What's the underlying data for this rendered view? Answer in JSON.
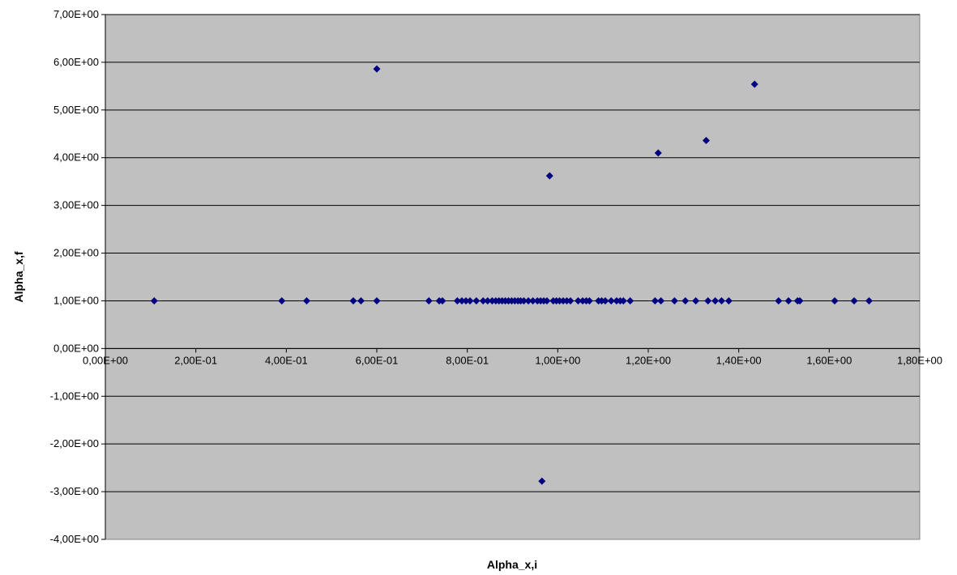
{
  "chart_data": {
    "type": "scatter",
    "xlabel": "Alpha_x,i",
    "ylabel": "Alpha_x,f",
    "xlim": [
      0,
      1.8
    ],
    "ylim": [
      -4,
      7
    ],
    "grid": "horizontal",
    "marker": "diamond",
    "colors": {
      "plot_background": "#C0C0C0",
      "marker": "#000080",
      "grid": "#000000"
    },
    "x_tick_labels": [
      "0,00E+00",
      "2,00E-01",
      "4,00E-01",
      "6,00E-01",
      "8,00E-01",
      "1,00E+00",
      "1,20E+00",
      "1,40E+00",
      "1,60E+00",
      "1,80E+00"
    ],
    "y_tick_labels": [
      "-4,00E+00",
      "-3,00E+00",
      "-2,00E+00",
      "-1,00E+00",
      "0,00E+00",
      "1,00E+00",
      "2,00E+00",
      "3,00E+00",
      "4,00E+00",
      "5,00E+00",
      "6,00E+00",
      "7,00E+00"
    ],
    "x_tick_values": [
      0,
      0.2,
      0.4,
      0.6,
      0.8,
      1.0,
      1.2,
      1.4,
      1.6,
      1.8
    ],
    "y_tick_values": [
      -4,
      -3,
      -2,
      -1,
      0,
      1,
      2,
      3,
      4,
      5,
      6,
      7
    ],
    "points": [
      {
        "x": 0.108,
        "y": 1
      },
      {
        "x": 0.39,
        "y": 1
      },
      {
        "x": 0.445,
        "y": 1
      },
      {
        "x": 0.548,
        "y": 1
      },
      {
        "x": 0.565,
        "y": 1
      },
      {
        "x": 0.6,
        "y": 1
      },
      {
        "x": 0.6,
        "y": 5.86
      },
      {
        "x": 0.715,
        "y": 1
      },
      {
        "x": 0.738,
        "y": 1
      },
      {
        "x": 0.745,
        "y": 1
      },
      {
        "x": 0.778,
        "y": 1
      },
      {
        "x": 0.788,
        "y": 1
      },
      {
        "x": 0.797,
        "y": 1
      },
      {
        "x": 0.806,
        "y": 1
      },
      {
        "x": 0.82,
        "y": 1
      },
      {
        "x": 0.835,
        "y": 1
      },
      {
        "x": 0.845,
        "y": 1
      },
      {
        "x": 0.855,
        "y": 1
      },
      {
        "x": 0.863,
        "y": 1
      },
      {
        "x": 0.87,
        "y": 1
      },
      {
        "x": 0.877,
        "y": 1
      },
      {
        "x": 0.884,
        "y": 1
      },
      {
        "x": 0.891,
        "y": 1
      },
      {
        "x": 0.898,
        "y": 1
      },
      {
        "x": 0.905,
        "y": 1
      },
      {
        "x": 0.912,
        "y": 1
      },
      {
        "x": 0.918,
        "y": 1
      },
      {
        "x": 0.925,
        "y": 1
      },
      {
        "x": 0.935,
        "y": 1
      },
      {
        "x": 0.945,
        "y": 1
      },
      {
        "x": 0.955,
        "y": 1
      },
      {
        "x": 0.962,
        "y": 1
      },
      {
        "x": 0.965,
        "y": -2.78
      },
      {
        "x": 0.969,
        "y": 1
      },
      {
        "x": 0.976,
        "y": 1
      },
      {
        "x": 0.982,
        "y": 3.62
      },
      {
        "x": 0.99,
        "y": 1
      },
      {
        "x": 0.997,
        "y": 1
      },
      {
        "x": 1.004,
        "y": 1
      },
      {
        "x": 1.012,
        "y": 1
      },
      {
        "x": 1.02,
        "y": 1
      },
      {
        "x": 1.028,
        "y": 1
      },
      {
        "x": 1.045,
        "y": 1
      },
      {
        "x": 1.055,
        "y": 1
      },
      {
        "x": 1.063,
        "y": 1
      },
      {
        "x": 1.07,
        "y": 1
      },
      {
        "x": 1.09,
        "y": 1
      },
      {
        "x": 1.097,
        "y": 1
      },
      {
        "x": 1.105,
        "y": 1
      },
      {
        "x": 1.118,
        "y": 1
      },
      {
        "x": 1.13,
        "y": 1
      },
      {
        "x": 1.138,
        "y": 1
      },
      {
        "x": 1.145,
        "y": 1
      },
      {
        "x": 1.16,
        "y": 1
      },
      {
        "x": 1.215,
        "y": 1
      },
      {
        "x": 1.222,
        "y": 4.1
      },
      {
        "x": 1.228,
        "y": 1
      },
      {
        "x": 1.258,
        "y": 1
      },
      {
        "x": 1.282,
        "y": 1
      },
      {
        "x": 1.305,
        "y": 1
      },
      {
        "x": 1.328,
        "y": 4.36
      },
      {
        "x": 1.332,
        "y": 1
      },
      {
        "x": 1.348,
        "y": 1
      },
      {
        "x": 1.362,
        "y": 1
      },
      {
        "x": 1.378,
        "y": 1
      },
      {
        "x": 1.435,
        "y": 5.54
      },
      {
        "x": 1.488,
        "y": 1
      },
      {
        "x": 1.51,
        "y": 1
      },
      {
        "x": 1.53,
        "y": 1
      },
      {
        "x": 1.535,
        "y": 1
      },
      {
        "x": 1.612,
        "y": 1
      },
      {
        "x": 1.655,
        "y": 1
      },
      {
        "x": 1.688,
        "y": 1
      }
    ]
  }
}
